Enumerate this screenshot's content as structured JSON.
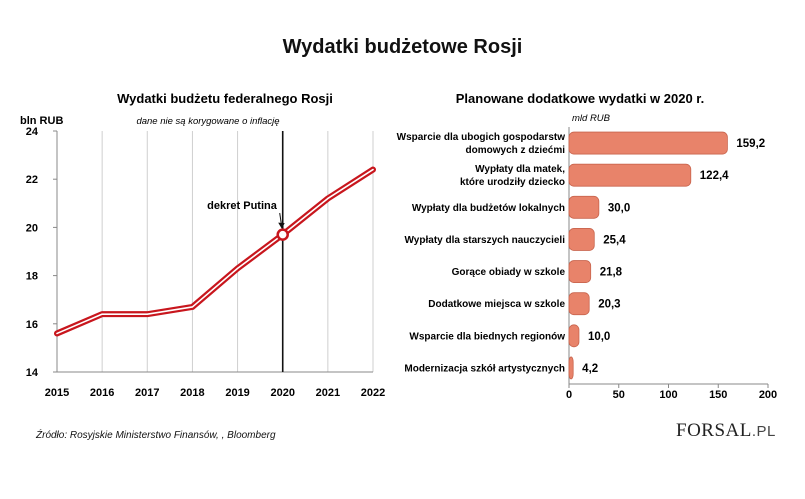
{
  "title": "Wydatki budżetowe Rosji",
  "source": "Źródło: Rosyjskie Ministerstwo Finansów, , Bloomberg",
  "logo": {
    "text": "FORSAL",
    "suffix": ".PL"
  },
  "chart_data": [
    {
      "type": "line",
      "title": "Wydatki budżetu federalnego Rosji",
      "ylabel": "bln RUB",
      "note": "dane nie są korygowane o inflację",
      "x": [
        "2015",
        "2016",
        "2017",
        "2018",
        "2019",
        "2020",
        "2021",
        "2022"
      ],
      "values": [
        15.6,
        16.4,
        16.4,
        16.7,
        18.3,
        19.7,
        21.2,
        22.4
      ],
      "ylim": [
        14,
        24
      ],
      "yticks": [
        "14",
        "16",
        "18",
        "20",
        "22",
        "24"
      ],
      "grid": "vertical",
      "annotation": {
        "text": "dekret Putina",
        "x": "2020"
      },
      "line_color": "#c8161d"
    },
    {
      "type": "bar",
      "orientation": "horizontal",
      "title": "Planowane dodatkowe wydatki w 2020 r.",
      "xlabel": "mld RUB",
      "categories": [
        [
          "Wsparcie dla ubogich gospodarstw",
          "domowych z dziećmi"
        ],
        [
          "Wypłaty dla matek,",
          "które urodziły dziecko"
        ],
        [
          "Wypłaty dla budżetów lokalnych"
        ],
        [
          "Wypłaty dla starszych nauczycieli"
        ],
        [
          "Gorące obiady w szkole"
        ],
        [
          "Dodatkowe miejsca w szkole"
        ],
        [
          "Wsparcie dla biednych regionów"
        ],
        [
          "Modernizacja szkół artystycznych"
        ]
      ],
      "values": [
        159.2,
        122.4,
        30.0,
        25.4,
        21.8,
        20.3,
        10.0,
        4.2
      ],
      "value_labels": [
        "159,2",
        "122,4",
        "30,0",
        "25,4",
        "21,8",
        "20,3",
        "10,0",
        "4,2"
      ],
      "xlim": [
        0,
        200
      ],
      "xticks": [
        "0",
        "50",
        "100",
        "150",
        "200"
      ],
      "bar_color": "#e8836a"
    }
  ]
}
